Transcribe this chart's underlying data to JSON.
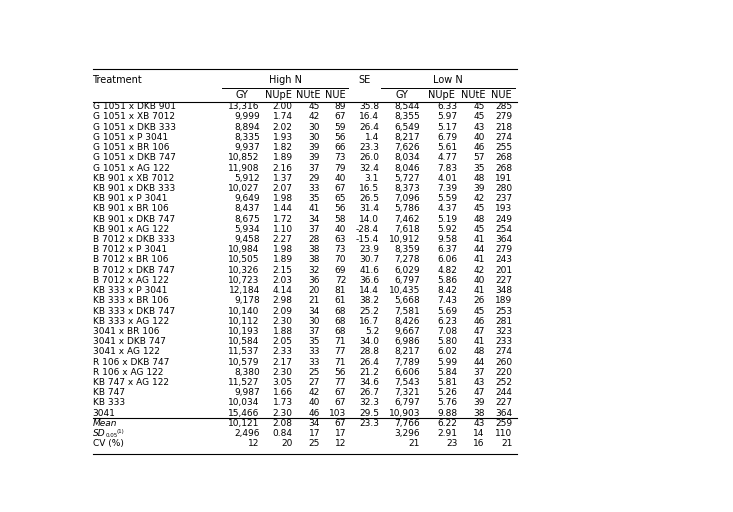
{
  "col_bounds": [
    0.0,
    0.23,
    0.3,
    0.358,
    0.406,
    0.452,
    0.51,
    0.582,
    0.648,
    0.696,
    0.745
  ],
  "rows": [
    [
      "G 1051 x DKB 901",
      "13,316",
      "2.00",
      "45",
      "89",
      "35.8",
      "8,544",
      "6.33",
      "45",
      "285"
    ],
    [
      "G 1051 x XB 7012",
      "9,999",
      "1.74",
      "42",
      "67",
      "16.4",
      "8,355",
      "5.97",
      "45",
      "279"
    ],
    [
      "G 1051 x DKB 333",
      "8,894",
      "2.02",
      "30",
      "59",
      "26.4",
      "6,549",
      "5.17",
      "43",
      "218"
    ],
    [
      "G 1051 x P 3041",
      "8,335",
      "1.93",
      "30",
      "56",
      "1.4",
      "8,217",
      "6.79",
      "40",
      "274"
    ],
    [
      "G 1051 x BR 106",
      "9,937",
      "1.82",
      "39",
      "66",
      "23.3",
      "7,626",
      "5.61",
      "46",
      "255"
    ],
    [
      "G 1051 x DKB 747",
      "10,852",
      "1.89",
      "39",
      "73",
      "26.0",
      "8,034",
      "4.77",
      "57",
      "268"
    ],
    [
      "G 1051 x AG 122",
      "11,908",
      "2.16",
      "37",
      "79",
      "32.4",
      "8,046",
      "7.83",
      "35",
      "268"
    ],
    [
      "KB 901 x XB 7012",
      "5,912",
      "1.37",
      "29",
      "40",
      "3.1",
      "5,727",
      "4.01",
      "48",
      "191"
    ],
    [
      "KB 901 x DKB 333",
      "10,027",
      "2.07",
      "33",
      "67",
      "16.5",
      "8,373",
      "7.39",
      "39",
      "280"
    ],
    [
      "KB 901 x P 3041",
      "9,649",
      "1.98",
      "35",
      "65",
      "26.5",
      "7,096",
      "5.59",
      "42",
      "237"
    ],
    [
      "KB 901 x BR 106",
      "8,437",
      "1.44",
      "41",
      "56",
      "31.4",
      "5,786",
      "4.37",
      "45",
      "193"
    ],
    [
      "KB 901 x DKB 747",
      "8,675",
      "1.72",
      "34",
      "58",
      "14.0",
      "7,462",
      "5.19",
      "48",
      "249"
    ],
    [
      "KB 901 x AG 122",
      "5,934",
      "1.10",
      "37",
      "40",
      "-28.4",
      "7,618",
      "5.92",
      "45",
      "254"
    ],
    [
      "B 7012 x DKB 333",
      "9,458",
      "2.27",
      "28",
      "63",
      "-15.4",
      "10,912",
      "9.58",
      "41",
      "364"
    ],
    [
      "B 7012 x P 3041",
      "10,984",
      "1.98",
      "38",
      "73",
      "23.9",
      "8,359",
      "6.37",
      "44",
      "279"
    ],
    [
      "B 7012 x BR 106",
      "10,505",
      "1.89",
      "38",
      "70",
      "30.7",
      "7,278",
      "6.06",
      "41",
      "243"
    ],
    [
      "B 7012 x DKB 747",
      "10,326",
      "2.15",
      "32",
      "69",
      "41.6",
      "6,029",
      "4.82",
      "42",
      "201"
    ],
    [
      "B 7012 x AG 122",
      "10,723",
      "2.03",
      "36",
      "72",
      "36.6",
      "6,797",
      "5.86",
      "40",
      "227"
    ],
    [
      "KB 333 x P 3041",
      "12,184",
      "4.14",
      "20",
      "81",
      "14.4",
      "10,435",
      "8.42",
      "41",
      "348"
    ],
    [
      "KB 333 x BR 106",
      "9,178",
      "2.98",
      "21",
      "61",
      "38.2",
      "5,668",
      "7.43",
      "26",
      "189"
    ],
    [
      "KB 333 x DKB 747",
      "10,140",
      "2.09",
      "34",
      "68",
      "25.2",
      "7,581",
      "5.69",
      "45",
      "253"
    ],
    [
      "KB 333 x AG 122",
      "10,112",
      "2.30",
      "30",
      "68",
      "16.7",
      "8,426",
      "6.23",
      "46",
      "281"
    ],
    [
      "3041 x BR 106",
      "10,193",
      "1.88",
      "37",
      "68",
      "5.2",
      "9,667",
      "7.08",
      "47",
      "323"
    ],
    [
      "3041 x DKB 747",
      "10,584",
      "2.05",
      "35",
      "71",
      "34.0",
      "6,986",
      "5.80",
      "41",
      "233"
    ],
    [
      "3041 x AG 122",
      "11,537",
      "2.33",
      "33",
      "77",
      "28.8",
      "8,217",
      "6.02",
      "48",
      "274"
    ],
    [
      "R 106 x DKB 747",
      "10,579",
      "2.17",
      "33",
      "71",
      "26.4",
      "7,789",
      "5.99",
      "44",
      "260"
    ],
    [
      "R 106 x AG 122",
      "8,380",
      "2.30",
      "25",
      "56",
      "21.2",
      "6,606",
      "5.84",
      "37",
      "220"
    ],
    [
      "KB 747 x AG 122",
      "11,527",
      "3.05",
      "27",
      "77",
      "34.6",
      "7,543",
      "5.81",
      "43",
      "252"
    ],
    [
      "KB 747",
      "9,987",
      "1.66",
      "42",
      "67",
      "26.7",
      "7,321",
      "5.26",
      "47",
      "244"
    ],
    [
      "KB 333",
      "10,034",
      "1.73",
      "40",
      "67",
      "32.3",
      "6,797",
      "5.76",
      "39",
      "227"
    ],
    [
      "3041",
      "15,466",
      "2.30",
      "46",
      "103",
      "29.5",
      "10,903",
      "9.88",
      "38",
      "364"
    ]
  ],
  "footer_rows": [
    [
      "Mean",
      "10,121",
      "2.08",
      "34",
      "67",
      "23.3",
      "7,766",
      "6.22",
      "43",
      "259"
    ],
    [
      "SD0.05",
      "2,496",
      "0.84",
      "17",
      "17",
      "",
      "3,296",
      "2.91",
      "14",
      "110"
    ],
    [
      "CV (%)",
      "12",
      "20",
      "25",
      "12",
      "",
      "21",
      "23",
      "16",
      "21"
    ]
  ],
  "bg_color": "#ffffff",
  "text_color": "#000000",
  "font_size": 6.5,
  "header_font_size": 7.0
}
